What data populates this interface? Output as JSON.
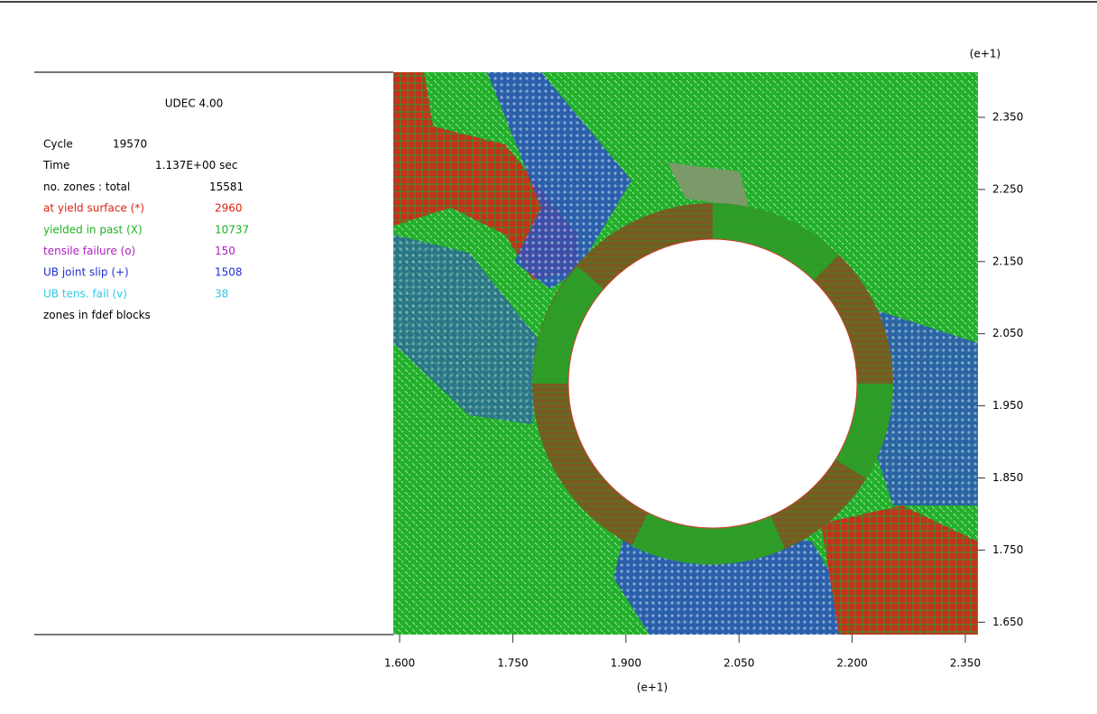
{
  "header": {
    "title": "UDEC 4.00"
  },
  "legend": [
    {
      "label": "Cycle",
      "value": "19570"
    },
    {
      "label": "Time",
      "value": "1.137E+00 sec"
    },
    {
      "label": "no. zones : total",
      "value": "15581"
    },
    {
      "label": "at yield surface (*)",
      "value": "2960"
    },
    {
      "label": "yielded in past  (X)",
      "value": "10737"
    },
    {
      "label": "tensile failure  (o)",
      "value": "150"
    },
    {
      "label": "UB joint slip    (+)",
      "value": "1508"
    },
    {
      "label": "UB tens. fail    (v)",
      "value": "38"
    },
    {
      "label": "zones in fdef blocks",
      "value": null
    }
  ],
  "x_axis": {
    "scale": "(e+1)",
    "ticks": [
      "1.600",
      "1.750",
      "1.900",
      "2.050",
      "2.200",
      "2.350"
    ]
  },
  "y_axis": {
    "scale": "(e+1)",
    "ticks": [
      "2.350",
      "2.250",
      "2.150",
      "2.050",
      "1.950",
      "1.850",
      "1.750",
      "1.650"
    ]
  }
}
